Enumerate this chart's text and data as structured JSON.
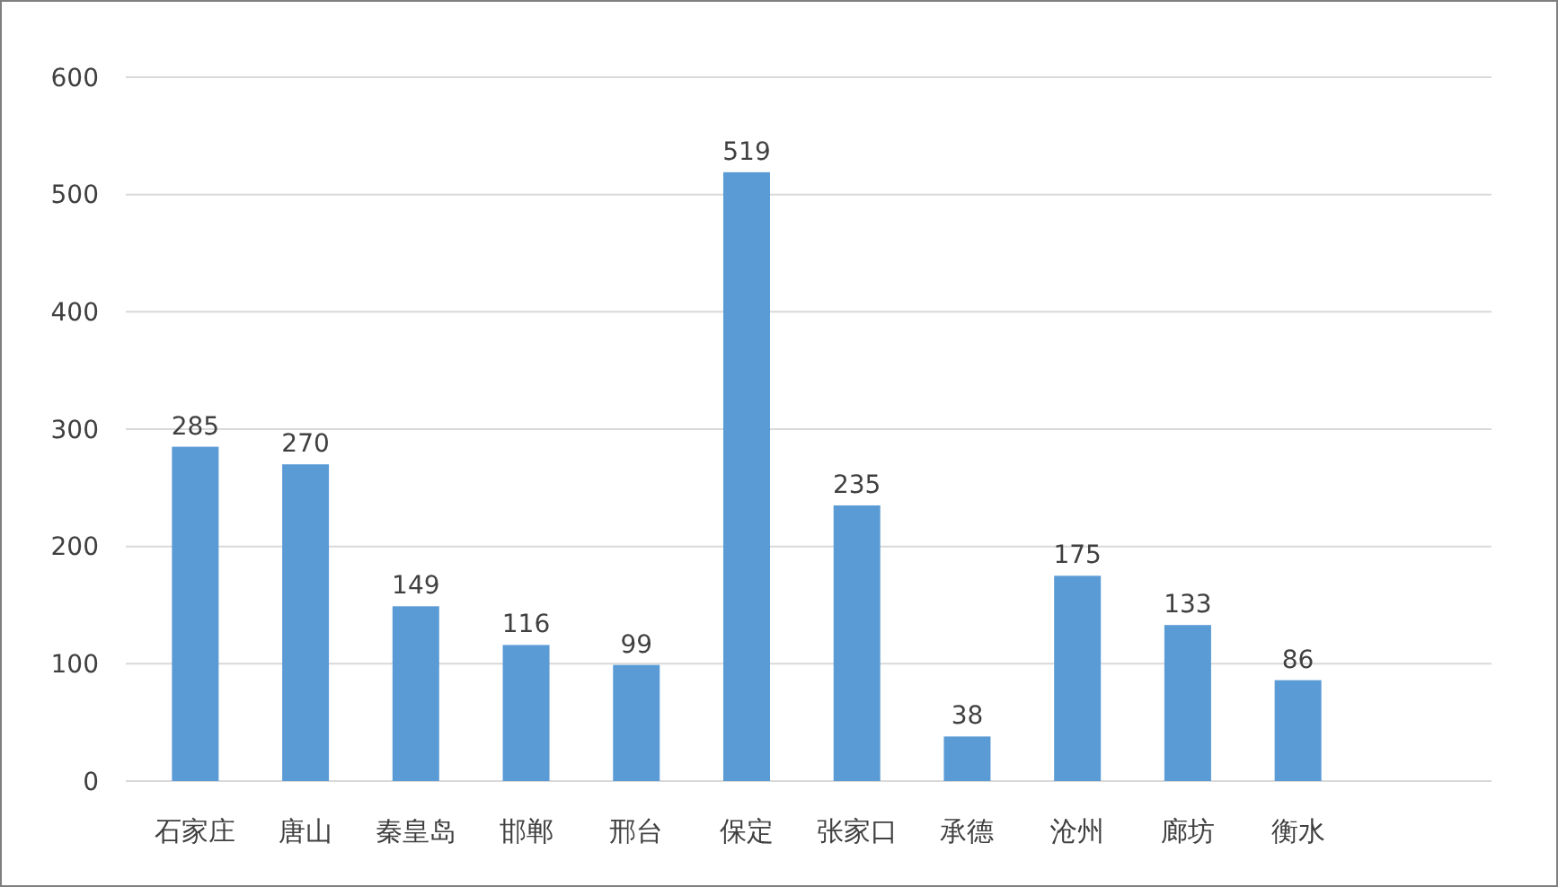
{
  "chart_data": {
    "type": "bar",
    "categories": [
      "石家庄",
      "唐山",
      "秦皇岛",
      "邯郸",
      "邢台",
      "保定",
      "张家口",
      "承德",
      "沧州",
      "廊坊",
      "衡水"
    ],
    "values": [
      285,
      270,
      149,
      116,
      99,
      519,
      235,
      38,
      175,
      133,
      86
    ],
    "color": "#5b9bd5",
    "ylim": [
      0,
      600
    ],
    "yticks": [
      0,
      100,
      200,
      300,
      400,
      500,
      600
    ],
    "grid": "y",
    "data_labels": true
  }
}
